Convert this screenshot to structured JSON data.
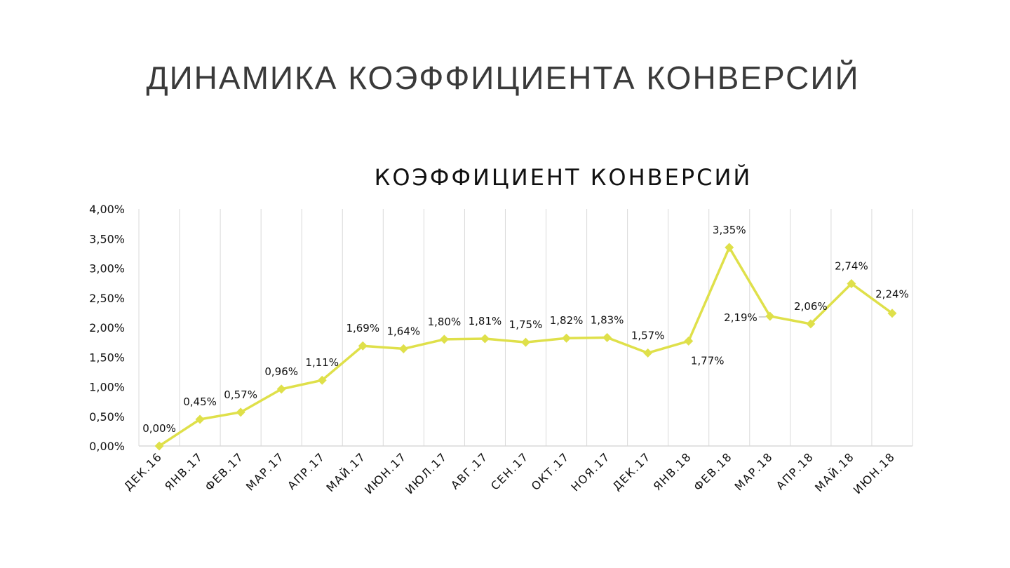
{
  "slide": {
    "title": "ДИНАМИКА КОЭФФИЦИЕНТА КОНВЕРСИЙ"
  },
  "colors": {
    "series": "#dfe04a",
    "grid": "#d9d9d9",
    "leader": "#a6a6a6"
  },
  "chart_data": {
    "type": "line",
    "title": "КОЭФФИЦИЕНТ КОНВЕРСИЙ",
    "xlabel": "",
    "ylabel": "",
    "categories": [
      "ДЕК.16",
      "ЯНВ.17",
      "ФЕВ.17",
      "МАР.17",
      "АПР.17",
      "МАЙ.17",
      "ИЮН.17",
      "ИЮЛ.17",
      "АВГ.17",
      "СЕН.17",
      "ОКТ.17",
      "НОЯ.17",
      "ДЕК.17",
      "ЯНВ.18",
      "ФЕВ.18",
      "МАР.18",
      "АПР.18",
      "МАЙ.18",
      "ИЮН.18"
    ],
    "values": [
      0.0,
      0.45,
      0.57,
      0.96,
      1.11,
      1.69,
      1.64,
      1.8,
      1.81,
      1.75,
      1.82,
      1.83,
      1.57,
      1.77,
      3.35,
      2.19,
      2.06,
      2.74,
      2.24
    ],
    "data_labels": [
      "0,00%",
      "0,45%",
      "0,57%",
      "0,96%",
      "1,11%",
      "1,69%",
      "1,64%",
      "1,80%",
      "1,81%",
      "1,75%",
      "1,82%",
      "1,83%",
      "1,57%",
      "1,77%",
      "3,35%",
      "2,19%",
      "2,06%",
      "2,74%",
      "2,24%"
    ],
    "ylim": [
      0,
      4
    ],
    "yticks": [
      0,
      0.5,
      1,
      1.5,
      2,
      2.5,
      3,
      3.5,
      4
    ],
    "ytick_labels": [
      "0,00%",
      "0,50%",
      "1,00%",
      "1,50%",
      "2,00%",
      "2,50%",
      "3,00%",
      "3,50%",
      "4,00%"
    ],
    "grid": "vertical",
    "legend": "none",
    "marker": "diamond"
  }
}
